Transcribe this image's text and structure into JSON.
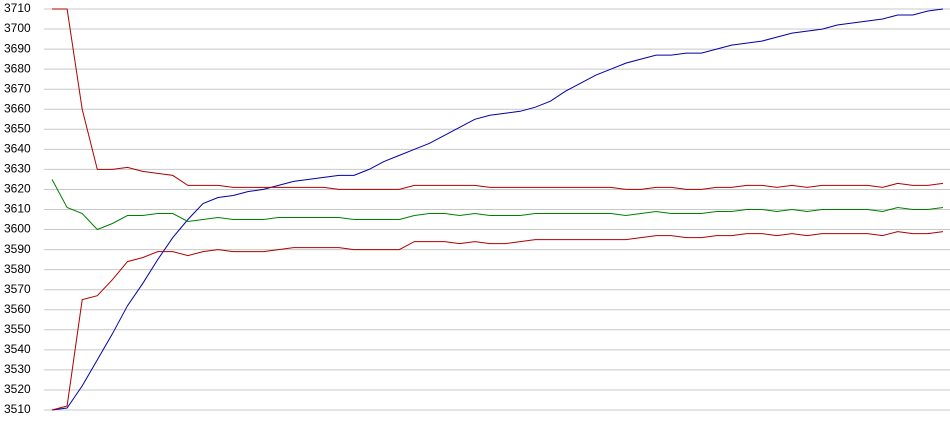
{
  "chart_data": {
    "type": "line",
    "ylim": [
      3510,
      3710
    ],
    "yticks": [
      3510,
      3520,
      3530,
      3540,
      3550,
      3560,
      3570,
      3580,
      3590,
      3600,
      3610,
      3620,
      3630,
      3640,
      3650,
      3660,
      3670,
      3680,
      3690,
      3700,
      3710
    ],
    "grid": true,
    "series": [
      {
        "color": "#0000a8",
        "values": [
          3510,
          3511,
          3522,
          3535,
          3548,
          3562,
          3573,
          3585,
          3596,
          3605,
          3613,
          3616,
          3617,
          3619,
          3620,
          3622,
          3624,
          3625,
          3626,
          3627,
          3627,
          3630,
          3634,
          3637,
          3640,
          3643,
          3647,
          3651,
          3655,
          3657,
          3658,
          3659,
          3661,
          3664,
          3669,
          3673,
          3677,
          3680,
          3683,
          3685,
          3687,
          3687,
          3688,
          3688,
          3690,
          3692,
          3693,
          3694,
          3696,
          3698,
          3699,
          3700,
          3702,
          3703,
          3704,
          3705,
          3707,
          3707,
          3709,
          3710
        ]
      },
      {
        "color": "#b00000",
        "values": [
          3710,
          3710,
          3660,
          3630,
          3630,
          3631,
          3629,
          3628,
          3627,
          3622,
          3622,
          3622,
          3621,
          3621,
          3621,
          3621,
          3621,
          3621,
          3621,
          3620,
          3620,
          3620,
          3620,
          3620,
          3622,
          3622,
          3622,
          3622,
          3622,
          3621,
          3621,
          3621,
          3621,
          3621,
          3621,
          3621,
          3621,
          3621,
          3620,
          3620,
          3621,
          3621,
          3620,
          3620,
          3621,
          3621,
          3622,
          3622,
          3621,
          3622,
          3621,
          3622,
          3622,
          3622,
          3622,
          3621,
          3623,
          3622,
          3622,
          3623
        ]
      },
      {
        "color": "#008000",
        "values": [
          3625,
          3611,
          3608,
          3600,
          3603,
          3607,
          3607,
          3608,
          3608,
          3604,
          3605,
          3606,
          3605,
          3605,
          3605,
          3606,
          3606,
          3606,
          3606,
          3606,
          3605,
          3605,
          3605,
          3605,
          3607,
          3608,
          3608,
          3607,
          3608,
          3607,
          3607,
          3607,
          3608,
          3608,
          3608,
          3608,
          3608,
          3608,
          3607,
          3608,
          3609,
          3608,
          3608,
          3608,
          3609,
          3609,
          3610,
          3610,
          3609,
          3610,
          3609,
          3610,
          3610,
          3610,
          3610,
          3609,
          3611,
          3610,
          3610,
          3611
        ]
      },
      {
        "color": "#b00000",
        "values": [
          3510,
          3512,
          3565,
          3567,
          3575,
          3584,
          3586,
          3589,
          3589,
          3587,
          3589,
          3590,
          3589,
          3589,
          3589,
          3590,
          3591,
          3591,
          3591,
          3591,
          3590,
          3590,
          3590,
          3590,
          3594,
          3594,
          3594,
          3593,
          3594,
          3593,
          3593,
          3594,
          3595,
          3595,
          3595,
          3595,
          3595,
          3595,
          3595,
          3596,
          3597,
          3597,
          3596,
          3596,
          3597,
          3597,
          3598,
          3598,
          3597,
          3598,
          3597,
          3598,
          3598,
          3598,
          3598,
          3597,
          3599,
          3598,
          3598,
          3599
        ]
      }
    ]
  }
}
